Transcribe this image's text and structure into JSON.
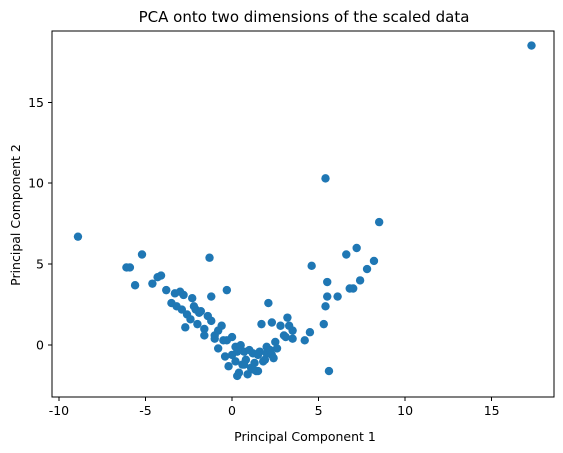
{
  "chart_data": {
    "type": "scatter",
    "title": "PCA onto two dimensions of the scaled data",
    "xlabel": "Principal Component 1",
    "ylabel": "Principal Component 2",
    "xlim": [
      -10.4,
      18.6
    ],
    "ylim": [
      -3.2,
      19.4
    ],
    "xticks": [
      -10,
      -5,
      0,
      5,
      10,
      15
    ],
    "yticks": [
      0,
      5,
      10,
      15
    ],
    "point_color": "#1f77b4",
    "grid": false,
    "legend": "none",
    "series": [
      {
        "x": [
          17.3,
          5.4,
          -8.9,
          8.5,
          7.2,
          7.0,
          6.8,
          8.2,
          7.8,
          7.4,
          6.6,
          6.1,
          4.6,
          5.5,
          5.5,
          5.4,
          5.3,
          5.6,
          4.5,
          4.2,
          3.5,
          3.3,
          2.1,
          1.7,
          2.3,
          2.8,
          3.2,
          -6.1,
          -5.9,
          -5.2,
          -5.6,
          -4.3,
          -4.1,
          -4.6,
          -3.8,
          -3.3,
          -3.0,
          -2.8,
          -2.3,
          -1.3,
          -1.2,
          -2.1,
          -1.9,
          -0.3,
          -3.5,
          -3.2,
          -2.9,
          -2.6,
          -2.4,
          -2.0,
          -1.6,
          -1.0,
          -0.5,
          0.2,
          0.7,
          1.2,
          1.6,
          2.0,
          2.5,
          3.0,
          3.5,
          -1.4,
          -0.6,
          0.0,
          0.5,
          1.0,
          1.5,
          2.0,
          -2.2,
          -1.8,
          -1.2,
          -0.8,
          -0.3,
          0.3,
          0.8,
          1.3,
          1.8,
          2.3,
          -0.2,
          0.4,
          0.9,
          1.4,
          -0.8,
          0.2,
          1.1,
          1.9,
          2.6,
          -1.0,
          0.0,
          0.7,
          1.5,
          2.2,
          0.3,
          1.2,
          2.4,
          3.1,
          -2.7,
          -1.6,
          -0.4,
          0.6
        ],
        "y": [
          18.5,
          10.3,
          6.7,
          7.6,
          6.0,
          3.5,
          3.5,
          5.2,
          4.7,
          4.0,
          5.6,
          3.0,
          4.9,
          3.9,
          3.0,
          2.4,
          1.3,
          -1.6,
          0.8,
          0.3,
          0.4,
          1.2,
          2.6,
          1.3,
          1.4,
          1.2,
          1.7,
          4.8,
          4.8,
          5.6,
          3.7,
          4.2,
          4.3,
          3.8,
          3.4,
          3.2,
          3.3,
          3.1,
          2.9,
          5.4,
          3.0,
          2.2,
          2.0,
          3.4,
          2.6,
          2.4,
          2.2,
          1.9,
          1.6,
          1.3,
          1.0,
          0.6,
          0.3,
          -0.1,
          -0.4,
          -0.5,
          -0.4,
          -0.1,
          0.2,
          0.6,
          0.9,
          1.8,
          1.2,
          0.5,
          0.0,
          -0.3,
          -0.6,
          -0.5,
          2.4,
          2.1,
          1.5,
          0.9,
          0.3,
          -0.4,
          -0.9,
          -1.1,
          -1.0,
          -0.6,
          -1.3,
          -1.7,
          -1.8,
          -1.6,
          -0.2,
          -1.0,
          -1.4,
          -0.9,
          -0.2,
          0.4,
          -0.6,
          -1.2,
          -1.6,
          -0.3,
          -1.9,
          -1.5,
          -0.8,
          0.5,
          1.1,
          0.6,
          -0.7,
          -1.2
        ]
      }
    ]
  }
}
